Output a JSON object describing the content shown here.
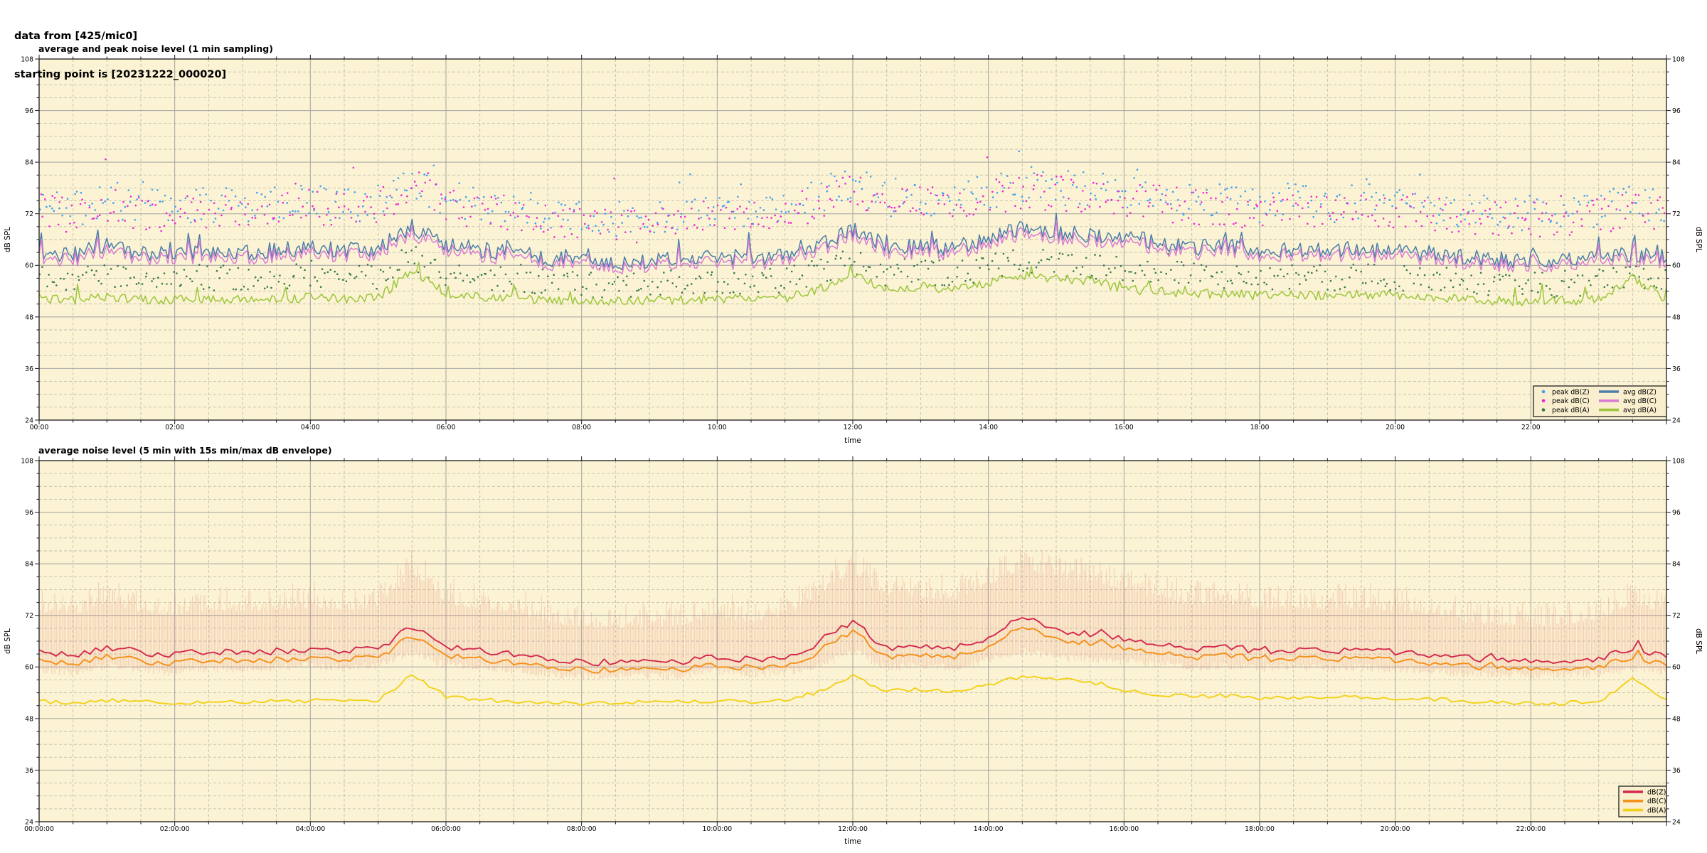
{
  "header": {
    "line1": "data from [425/mic0]",
    "line2": "starting point is [20231222_000020]"
  },
  "style": {
    "plot_bg": "#fbf3d3",
    "grid_major": "#a3a3a3",
    "grid_minor": "#c2beb0",
    "frame": "#1a1a1a",
    "legend_bg": "#f9eecd",
    "legend_border": "#222222",
    "envelope_color": "#e4786e"
  },
  "chart_data": [
    {
      "type": "line+scatter",
      "title": "average and peak noise level (1 min sampling)",
      "xlabel": "time",
      "ylabel_left": "dB SPL",
      "ylabel_right": "dB SPL",
      "x_hours": 24,
      "ylim": [
        24,
        108
      ],
      "ytick_labels": [
        "24",
        "36",
        "48",
        "60",
        "72",
        "84",
        "96",
        "108"
      ],
      "ytick_step": 12,
      "ytick_minor_step": 3,
      "xtick_major_hours": 2,
      "xtick_minor_hours": 0.5,
      "xtick_labels": [
        "00:00",
        "02:00",
        "04:00",
        "06:00",
        "08:00",
        "10:00",
        "12:00",
        "14:00",
        "16:00",
        "18:00",
        "20:00",
        "22:00"
      ],
      "anchor_step_hours": 0.5,
      "noise_seed": 11,
      "noise_groups": {
        "zc": {
          "jitter": 1.9,
          "spike_chance": 0.05,
          "spike_mag": 5.2
        },
        "a": {
          "jitter": 1.1,
          "spike_chance": 0.04,
          "spike_mag": 3.2
        }
      },
      "series": [
        {
          "name": "peak dB(Z)",
          "kind": "scatter",
          "color": "#41a0f2",
          "step_min": 2.5,
          "jitter": 4.2,
          "outlier_chance": 0.025,
          "outlier_mag": 9,
          "anchors": [
            74,
            73,
            75.5,
            74,
            73,
            74,
            74,
            74,
            75,
            74,
            75,
            80,
            75.5,
            74,
            74,
            72,
            71,
            71,
            71,
            72,
            73,
            72,
            73,
            76.5,
            79,
            75.5,
            75.5,
            75.5,
            77,
            79,
            78,
            78,
            77,
            76,
            75,
            75,
            74,
            75,
            74,
            75,
            74,
            74,
            72.5,
            72,
            72,
            72,
            73,
            74.5,
            73
          ]
        },
        {
          "name": "peak dB(C)",
          "kind": "scatter",
          "color": "#ee25d8",
          "step_min": 2.5,
          "jitter": 4.2,
          "outlier_chance": 0.02,
          "outlier_mag": 8,
          "anchors": [
            72.5,
            71.5,
            74,
            72.5,
            71.5,
            72.5,
            72.5,
            72.5,
            73.5,
            72.5,
            73.5,
            78.5,
            74,
            72.5,
            72.5,
            70.5,
            69.5,
            69.5,
            69.5,
            70.5,
            71.5,
            70.5,
            71.5,
            75,
            77.5,
            74,
            74,
            74,
            75.5,
            77.5,
            76.5,
            76.5,
            75.5,
            74.5,
            73.5,
            73.5,
            72.5,
            73.5,
            72.5,
            73.5,
            72.5,
            72.5,
            71,
            70.5,
            70.5,
            70.5,
            71.5,
            73,
            71.5
          ]
        },
        {
          "name": "peak dB(A)",
          "kind": "scatter",
          "color": "#357a4c",
          "step_min": 2.5,
          "jitter": 3.0,
          "outlier_chance": 0.03,
          "outlier_mag": 6,
          "anchors": [
            57,
            56.5,
            57.5,
            57,
            56.5,
            57,
            57,
            57,
            57.5,
            57,
            57.5,
            62,
            58,
            57,
            57,
            56,
            55.5,
            55.5,
            55.5,
            56,
            56.5,
            56,
            56.5,
            58.5,
            61,
            58,
            58.5,
            58,
            59.5,
            61,
            60,
            60,
            59,
            58.5,
            57.5,
            57.5,
            57,
            57.5,
            57,
            57.5,
            57,
            57,
            56,
            55.5,
            55.5,
            55.5,
            56,
            58,
            57
          ]
        },
        {
          "name": "avg dB(Z)",
          "kind": "line",
          "color": "#4a7da9",
          "width": 1.5,
          "step_min": 2,
          "noise_group": "zc",
          "noise_scale": 1,
          "anchors": [
            63,
            62.5,
            64.5,
            63,
            62.5,
            63.5,
            63,
            63.5,
            64,
            63.5,
            64,
            69,
            64.5,
            63.5,
            63,
            61.5,
            61,
            60.8,
            61,
            61.2,
            62,
            61.5,
            62,
            64.5,
            68.5,
            64,
            64.5,
            64,
            66.5,
            68.5,
            67.5,
            67,
            66.5,
            65.5,
            64,
            64.5,
            63.5,
            64,
            63.5,
            63.8,
            63.2,
            62.8,
            62,
            61.5,
            61.2,
            61.5,
            61.8,
            62.5,
            62
          ]
        },
        {
          "name": "avg dB(C)",
          "kind": "line",
          "color": "#d97bd3",
          "width": 1.5,
          "step_min": 2,
          "noise_group": "zc",
          "noise_scale": 0.92,
          "anchors": [
            61.8,
            61.3,
            63.2,
            61.8,
            61.3,
            62.3,
            61.8,
            62.3,
            62.8,
            62.3,
            62.8,
            67.6,
            63.3,
            62.3,
            61.8,
            60.4,
            59.9,
            59.7,
            59.9,
            60.1,
            60.8,
            60.3,
            60.8,
            63.2,
            67.2,
            62.8,
            63.3,
            62.8,
            65.2,
            67.2,
            66.2,
            65.7,
            65.2,
            64.3,
            62.8,
            63.3,
            62.3,
            62.8,
            62.3,
            62.6,
            62,
            61.6,
            60.8,
            60.3,
            60,
            60.3,
            60.6,
            61.3,
            60.8
          ]
        },
        {
          "name": "avg dB(A)",
          "kind": "line",
          "color": "#9cc63c",
          "width": 1.5,
          "step_min": 2,
          "noise_group": "a",
          "noise_scale": 1,
          "anchors": [
            52.5,
            52,
            52.6,
            52.1,
            51.9,
            52.3,
            52,
            52.3,
            52.5,
            52.2,
            52.6,
            58.5,
            53.5,
            52.6,
            52.3,
            52,
            51.8,
            51.8,
            52,
            52,
            52.3,
            52,
            52.4,
            54.5,
            58,
            54.5,
            55,
            54.5,
            56,
            57.5,
            57,
            56.5,
            54.5,
            54,
            53.2,
            53.5,
            53,
            53.2,
            53,
            53.2,
            53,
            52.8,
            52.2,
            51.8,
            51.6,
            51.8,
            52,
            57.5,
            52
          ]
        }
      ],
      "legend": {
        "columns": [
          [
            {
              "label": "peak dB(Z)",
              "marker": "dot",
              "color": "#41a0f2"
            },
            {
              "label": "peak dB(C)",
              "marker": "dot",
              "color": "#ee25d8"
            },
            {
              "label": "peak dB(A)",
              "marker": "dot",
              "color": "#357a4c"
            }
          ],
          [
            {
              "label": "avg dB(Z)",
              "marker": "line",
              "color": "#4a7da9"
            },
            {
              "label": "avg dB(C)",
              "marker": "line",
              "color": "#d97bd3"
            },
            {
              "label": "avg dB(A)",
              "marker": "line",
              "color": "#9cc63c"
            }
          ]
        ]
      }
    },
    {
      "type": "line+envelope",
      "title": "average noise level (5 min with 15s min/max dB envelope)",
      "xlabel": "time",
      "ylabel_left": "dB SPL",
      "ylabel_right": "dB SPL",
      "x_hours": 24,
      "ylim": [
        24,
        108
      ],
      "ytick_labels": [
        "24",
        "36",
        "48",
        "60",
        "72",
        "84",
        "96",
        "108"
      ],
      "ytick_step": 12,
      "ytick_minor_step": 3,
      "xtick_major_hours": 2,
      "xtick_minor_hours": 0.5,
      "xtick_labels": [
        "00:00:00",
        "02:00:00",
        "04:00:00",
        "06:00:00",
        "08:00:00",
        "10:00:00",
        "12:00:00",
        "14:00:00",
        "16:00:00",
        "18:00:00",
        "20:00:00",
        "22:00:00"
      ],
      "anchor_step_hours": 0.5,
      "noise_seed": 22,
      "noise_groups": {
        "zc2": {
          "jitter": 0.8,
          "spike_chance": 0.05,
          "spike_mag": 1.6
        },
        "a2": {
          "jitter": 0.5,
          "spike_chance": 0.03,
          "spike_mag": 1.0
        }
      },
      "series": [
        {
          "name": "min/max envelope",
          "kind": "envelope",
          "color": "#e4786e",
          "opacity": 0.3,
          "max_jitter": 6,
          "min_jitter": 1.8,
          "max_anchors": [
            75,
            74,
            77,
            75,
            74,
            75.5,
            75,
            75.5,
            76,
            75.5,
            76,
            84,
            77,
            75.5,
            75,
            72.5,
            71.5,
            71,
            71.5,
            72,
            74,
            72.5,
            74,
            79,
            84.5,
            78,
            78,
            78,
            81,
            85,
            83,
            82,
            80,
            78.5,
            76.5,
            77,
            75.5,
            76,
            75.5,
            76,
            75,
            74.5,
            72.5,
            72,
            71.5,
            72,
            73,
            77,
            74
          ],
          "min_anchors": [
            60.2,
            59.7,
            61.2,
            60.2,
            59.7,
            60.7,
            60.2,
            60.7,
            61.2,
            60.7,
            61.2,
            64.5,
            61.2,
            60.7,
            60.2,
            59.2,
            58.7,
            58.5,
            58.7,
            58.9,
            59.7,
            59.2,
            59.7,
            61,
            64.5,
            60.7,
            61.2,
            60.7,
            62.5,
            64.5,
            63.2,
            62.7,
            62.2,
            61.7,
            60.7,
            61.2,
            60.5,
            61,
            60.5,
            60.8,
            60.3,
            60,
            59.5,
            59.2,
            59,
            59.2,
            59.4,
            60.7,
            59.7
          ]
        },
        {
          "name": "dB(Z)",
          "kind": "line",
          "color": "#d5294d",
          "width": 1.9,
          "step_min": 5,
          "noise_group": "zc2",
          "noise_scale": 1,
          "anchors": [
            63.2,
            62.7,
            64.7,
            63.2,
            62.7,
            63.7,
            63.2,
            63.7,
            64.2,
            63.7,
            64.2,
            69.5,
            64.7,
            63.7,
            63.2,
            61.7,
            61.2,
            61,
            61.2,
            61.4,
            62.2,
            61.7,
            62.2,
            65.5,
            70.5,
            64.2,
            64.7,
            64.2,
            67,
            71.5,
            68.5,
            67.5,
            66.5,
            65.5,
            64.2,
            64.7,
            63.7,
            64.2,
            63.7,
            64,
            63.4,
            63,
            62.2,
            61.7,
            61.4,
            61.7,
            62,
            64.5,
            62.2
          ]
        },
        {
          "name": "dB(C)",
          "kind": "line",
          "color": "#f59018",
          "width": 1.9,
          "step_min": 5,
          "noise_group": "zc2",
          "noise_scale": 0.9,
          "anchors": [
            61.2,
            60.7,
            62.7,
            61.2,
            60.7,
            61.7,
            61.2,
            61.7,
            62.2,
            61.7,
            62.2,
            67.3,
            62.7,
            61.7,
            61.2,
            59.9,
            59.4,
            59.2,
            59.4,
            59.6,
            60.3,
            59.8,
            60.3,
            63.3,
            68.3,
            62.2,
            62.7,
            62.2,
            64.9,
            69.2,
            66.4,
            65.4,
            64.4,
            63.5,
            62.3,
            62.8,
            61.8,
            62.3,
            61.8,
            62.1,
            61.5,
            61.1,
            60.3,
            59.8,
            59.6,
            59.9,
            60.1,
            62.4,
            60.3
          ]
        },
        {
          "name": "dB(A)",
          "kind": "line",
          "color": "#f2d118",
          "width": 1.9,
          "step_min": 5,
          "noise_group": "a2",
          "noise_scale": 1,
          "anchors": [
            52,
            51.6,
            52.2,
            51.8,
            51.6,
            52,
            51.8,
            52,
            52.2,
            52,
            52.3,
            58,
            53.2,
            52.3,
            52,
            51.8,
            51.6,
            51.6,
            51.8,
            51.8,
            52,
            51.8,
            52.1,
            54.3,
            58,
            54.3,
            54.8,
            54.3,
            56,
            57.8,
            57.2,
            56.6,
            54.3,
            53.8,
            53,
            53.3,
            52.8,
            53,
            52.8,
            53,
            52.8,
            52.6,
            52,
            51.6,
            51.5,
            51.6,
            51.8,
            57,
            52.2
          ]
        }
      ],
      "legend": {
        "columns": [
          [
            {
              "label": "dB(Z)",
              "marker": "line",
              "color": "#d5294d"
            },
            {
              "label": "dB(C)",
              "marker": "line",
              "color": "#f59018"
            },
            {
              "label": "dB(A)",
              "marker": "line",
              "color": "#f2d118"
            }
          ]
        ]
      }
    }
  ]
}
